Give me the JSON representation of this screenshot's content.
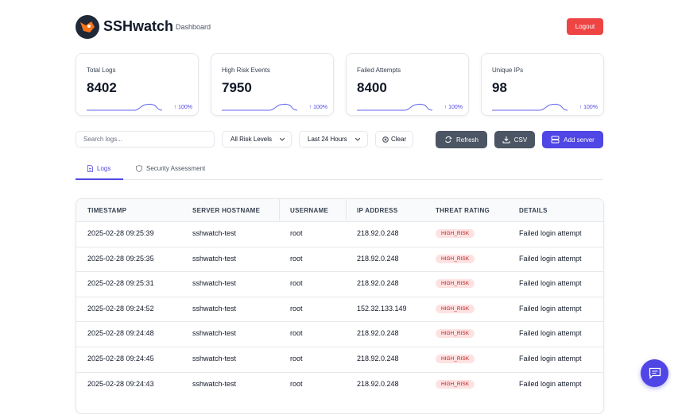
{
  "header": {
    "brand": "SSHwatch",
    "subtitle": "Dashboard",
    "logout": "Logout"
  },
  "stats": [
    {
      "label": "Total Logs",
      "value": 8402,
      "change": "↑ 100%"
    },
    {
      "label": "High Risk Events",
      "value": 7950,
      "change": "↑ 100%"
    },
    {
      "label": "Failed Attempts",
      "value": 8400,
      "change": "↑ 100%"
    },
    {
      "label": "Unique IPs",
      "value": 98,
      "change": "↑ 100%"
    }
  ],
  "toolbar": {
    "search_placeholder": "Search logs...",
    "risk_filter": "All Risk Levels",
    "time_filter": "Last 24 Hours",
    "clear": "Clear",
    "refresh": "Refresh",
    "csv": "CSV",
    "add_server": "Add server"
  },
  "tabs": [
    "Logs",
    "Security Assessment"
  ],
  "table": {
    "columns": [
      "TIMESTAMP",
      "SERVER HOSTNAME",
      "USERNAME",
      "IP ADDRESS",
      "THREAT RATING",
      "DETAILS"
    ],
    "rows": [
      [
        "2025-02-28 09:25:39",
        "sshwatch-test",
        "root",
        "218.92.0.248",
        "HIGH_RISK",
        "Failed login attempt"
      ],
      [
        "2025-02-28 09:25:35",
        "sshwatch-test",
        "root",
        "218.92.0.248",
        "HIGH_RISK",
        "Failed login attempt"
      ],
      [
        "2025-02-28 09:25:31",
        "sshwatch-test",
        "root",
        "218.92.0.248",
        "HIGH_RISK",
        "Failed login attempt"
      ],
      [
        "2025-02-28 09:24:52",
        "sshwatch-test",
        "root",
        "152.32.133.149",
        "HIGH_RISK",
        "Failed login attempt"
      ],
      [
        "2025-02-28 09:24:48",
        "sshwatch-test",
        "root",
        "218.92.0.248",
        "HIGH_RISK",
        "Failed login attempt"
      ],
      [
        "2025-02-28 09:24:45",
        "sshwatch-test",
        "root",
        "218.92.0.248",
        "HIGH_RISK",
        "Failed login attempt"
      ],
      [
        "2025-02-28 09:24:43",
        "sshwatch-test",
        "root",
        "218.92.0.248",
        "HIGH_RISK",
        "Failed login attempt"
      ]
    ]
  }
}
